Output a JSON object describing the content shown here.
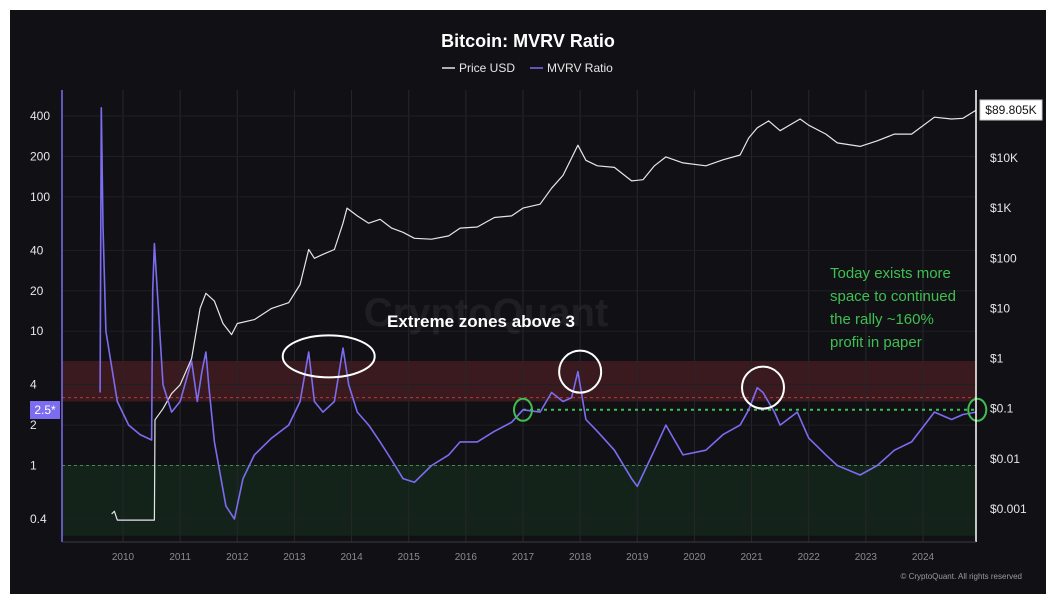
{
  "chart_data": {
    "type": "line",
    "title": "Bitcoin: MVRV Ratio",
    "watermark": "CryptoQuant",
    "copyright": "© CryptoQuant. All rights reserved",
    "legend": [
      {
        "name": "Price USD",
        "color": "#e6e6e6"
      },
      {
        "name": "MVRV Ratio",
        "color": "#7b6cf0"
      }
    ],
    "x_axis": {
      "ticks": [
        "2010",
        "2011",
        "2012",
        "2013",
        "2014",
        "2015",
        "2016",
        "2017",
        "2018",
        "2019",
        "2020",
        "2021",
        "2022",
        "2023",
        "2024"
      ],
      "range": [
        2009.8,
        2024.95
      ]
    },
    "left_axis": {
      "scale": "log",
      "ticks": [
        "400",
        "200",
        "100",
        "40",
        "20",
        "10",
        "4",
        "2",
        "1",
        "0.4"
      ],
      "tick_values": [
        400,
        200,
        100,
        40,
        20,
        10,
        4,
        2,
        1,
        0.4
      ],
      "range": [
        0.3,
        600
      ]
    },
    "right_axis": {
      "scale": "log",
      "ticks": [
        "$10K",
        "$1K",
        "$100",
        "$10",
        "$1",
        "$0.1",
        "$0.01",
        "$0.001"
      ],
      "tick_values": [
        10000,
        1000,
        100,
        10,
        1,
        0.1,
        0.01,
        0.001
      ],
      "range": [
        0.0004,
        200000
      ]
    },
    "current_price_label": "$89.805K",
    "current_mvrv_label": "2.5*",
    "zones": [
      {
        "name": "overvalued",
        "from": 3,
        "to": 6,
        "color": "#3a1a1e"
      },
      {
        "name": "undervalued",
        "from": 0.3,
        "to": 1,
        "color": "#13231a"
      }
    ],
    "reference_lines": [
      {
        "value": 3.2,
        "color": "#b83a3a"
      },
      {
        "value": 1,
        "color": "#3f8f4a"
      },
      {
        "value": 2.6,
        "color": "#3fbf52",
        "from_x": 2017.0,
        "to_x": 2024.95
      }
    ],
    "series": [
      {
        "name": "Price USD",
        "axis": "right",
        "color": "#e6e6e6",
        "x": [
          2009.8,
          2009.85,
          2009.9,
          2010.0,
          2010.3,
          2010.55,
          2010.56,
          2010.7,
          2010.85,
          2011.0,
          2011.2,
          2011.35,
          2011.45,
          2011.6,
          2011.75,
          2011.9,
          2012.0,
          2012.3,
          2012.6,
          2012.9,
          2013.1,
          2013.25,
          2013.35,
          2013.5,
          2013.7,
          2013.85,
          2013.92,
          2014.1,
          2014.3,
          2014.5,
          2014.7,
          2014.9,
          2015.1,
          2015.4,
          2015.7,
          2015.9,
          2016.2,
          2016.5,
          2016.8,
          2017.0,
          2017.3,
          2017.5,
          2017.7,
          2017.85,
          2017.96,
          2018.1,
          2018.3,
          2018.6,
          2018.9,
          2019.1,
          2019.3,
          2019.5,
          2019.8,
          2020.2,
          2020.5,
          2020.8,
          2020.95,
          2021.1,
          2021.3,
          2021.5,
          2021.85,
          2022.0,
          2022.3,
          2022.5,
          2022.9,
          2023.2,
          2023.5,
          2023.8,
          2024.2,
          2024.5,
          2024.7,
          2024.95
        ],
        "y": [
          0.0008,
          0.0009,
          0.0006,
          0.0006,
          0.0006,
          0.0006,
          0.06,
          0.1,
          0.2,
          0.3,
          1,
          10,
          20,
          14,
          5,
          3,
          5,
          6,
          10,
          13,
          30,
          150,
          100,
          120,
          150,
          500,
          1000,
          700,
          500,
          600,
          400,
          330,
          250,
          240,
          280,
          400,
          420,
          650,
          700,
          1000,
          1200,
          2500,
          4500,
          10000,
          18000,
          9000,
          7000,
          6500,
          3500,
          3700,
          7000,
          10500,
          8000,
          7000,
          9200,
          11500,
          25000,
          40000,
          55000,
          35000,
          60000,
          45000,
          30000,
          20000,
          17000,
          22000,
          30000,
          30000,
          65000,
          60000,
          62000,
          89805
        ]
      },
      {
        "name": "MVRV Ratio",
        "axis": "left",
        "color": "#7b6cf0",
        "x": [
          2009.6,
          2009.62,
          2009.65,
          2009.7,
          2009.9,
          2010.1,
          2010.3,
          2010.5,
          2010.52,
          2010.55,
          2010.7,
          2010.85,
          2011.0,
          2011.2,
          2011.3,
          2011.38,
          2011.45,
          2011.5,
          2011.6,
          2011.8,
          2011.95,
          2012.1,
          2012.3,
          2012.6,
          2012.9,
          2013.1,
          2013.25,
          2013.35,
          2013.5,
          2013.7,
          2013.85,
          2013.95,
          2014.1,
          2014.3,
          2014.5,
          2014.7,
          2014.9,
          2015.1,
          2015.4,
          2015.7,
          2015.9,
          2016.2,
          2016.5,
          2016.8,
          2017.0,
          2017.3,
          2017.5,
          2017.7,
          2017.85,
          2017.96,
          2018.1,
          2018.3,
          2018.6,
          2018.9,
          2019.0,
          2019.3,
          2019.5,
          2019.8,
          2020.2,
          2020.5,
          2020.8,
          2020.95,
          2021.1,
          2021.2,
          2021.4,
          2021.5,
          2021.8,
          2022.0,
          2022.3,
          2022.5,
          2022.9,
          2023.2,
          2023.5,
          2023.8,
          2024.2,
          2024.5,
          2024.7,
          2024.95
        ],
        "y": [
          3.5,
          460,
          60,
          10,
          3,
          2,
          1.7,
          1.55,
          20,
          45,
          4,
          2.5,
          3,
          6,
          3,
          5,
          7,
          4,
          1.5,
          0.5,
          0.4,
          0.8,
          1.2,
          1.6,
          2,
          3,
          7,
          3,
          2.5,
          3,
          7.5,
          4,
          2.5,
          2,
          1.5,
          1.1,
          0.8,
          0.75,
          1.0,
          1.2,
          1.5,
          1.5,
          1.8,
          2.1,
          2.6,
          2.5,
          3.5,
          3,
          3.2,
          5,
          2.2,
          1.8,
          1.3,
          0.8,
          0.7,
          1.3,
          2,
          1.2,
          1.3,
          1.7,
          2,
          2.6,
          3.8,
          3.5,
          2.5,
          2.0,
          2.5,
          1.6,
          1.2,
          1.0,
          0.85,
          1.0,
          1.3,
          1.5,
          2.5,
          2.2,
          2.4,
          2.5
        ]
      }
    ],
    "annotations": [
      {
        "text": "Extreme zones above 3",
        "color": "white"
      },
      {
        "text_lines": [
          "Today exists more",
          "space to continued",
          "the rally ~160%",
          "profit in paper"
        ],
        "color": "green"
      }
    ],
    "highlight_circles": [
      {
        "x": 2013.6,
        "y": 6.5,
        "color": "white",
        "kind": "large"
      },
      {
        "x": 2018.0,
        "y": 5.0,
        "color": "white",
        "kind": "medium"
      },
      {
        "x": 2021.2,
        "y": 3.8,
        "color": "white",
        "kind": "medium"
      },
      {
        "x": 2017.0,
        "y": 2.6,
        "color": "green",
        "kind": "small"
      },
      {
        "x": 2024.95,
        "y": 2.6,
        "color": "green",
        "kind": "small"
      }
    ]
  }
}
